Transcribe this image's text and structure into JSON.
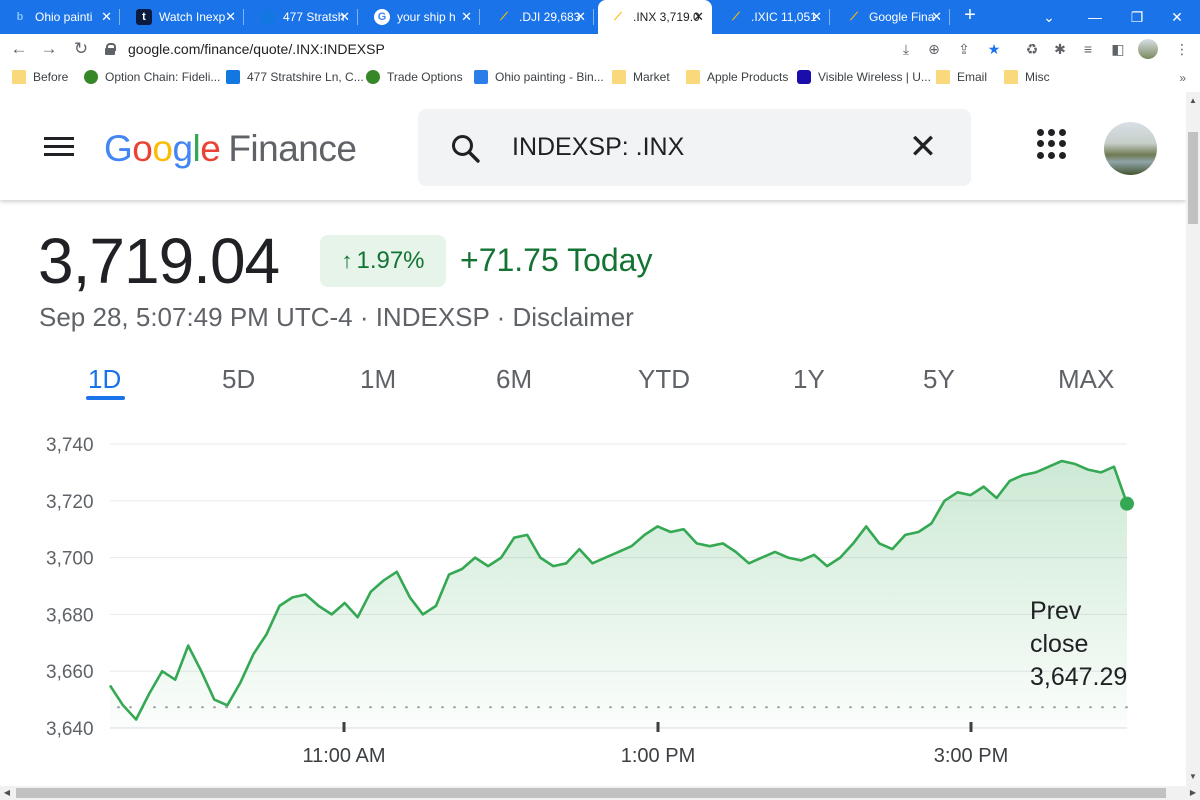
{
  "browser": {
    "tabs": [
      {
        "title": "Ohio painti",
        "icon": "bing-icon",
        "active": false
      },
      {
        "title": "Watch Inexp",
        "icon": "tubi-icon",
        "active": false
      },
      {
        "title": "477 Stratsh",
        "icon": "zillow-icon",
        "active": false
      },
      {
        "title": "your ship h",
        "icon": "google-icon",
        "active": false
      },
      {
        "title": ".DJI 29,683",
        "icon": "google-finance-icon",
        "active": false
      },
      {
        "title": ".INX 3,719.0",
        "icon": "google-finance-icon",
        "active": true
      },
      {
        "title": ".IXIC 11,051",
        "icon": "google-finance-icon",
        "active": false
      },
      {
        "title": "Google Fina",
        "icon": "google-finance-icon",
        "active": false
      }
    ],
    "url": "google.com/finance/quote/.INX:INDEXSP",
    "bookmarks": [
      {
        "label": "Before",
        "icon": "folder-icon"
      },
      {
        "label": "Option Chain: Fideli...",
        "icon": "fidelity-icon"
      },
      {
        "label": "477 Stratshire Ln, C...",
        "icon": "zillow-icon"
      },
      {
        "label": "Trade Options",
        "icon": "fidelity-icon"
      },
      {
        "label": "Ohio painting - Bin...",
        "icon": "bing-icon"
      },
      {
        "label": "Market",
        "icon": "folder-icon"
      },
      {
        "label": "Apple Products",
        "icon": "folder-icon"
      },
      {
        "label": "Visible Wireless | U...",
        "icon": "visible-icon"
      },
      {
        "label": "Email",
        "icon": "folder-icon"
      },
      {
        "label": "Misc",
        "icon": "folder-icon"
      }
    ],
    "bookmarks_more": "»"
  },
  "finance": {
    "logo_google": "Google",
    "logo_finance": "Finance",
    "search_value": "INDEXSP: .INX",
    "price": "3,719.04",
    "change_percent": "1.97%",
    "change_today": "+71.75 Today",
    "meta": "Sep 28, 5:07:49 PM UTC-4 · INDEXSP · Disclaimer",
    "ranges": [
      "1D",
      "5D",
      "1M",
      "6M",
      "YTD",
      "1Y",
      "5Y",
      "MAX"
    ],
    "active_range": "1D",
    "prev_close_label": [
      "Prev",
      "close"
    ],
    "prev_close_value": "3,647.29"
  },
  "colors": {
    "accent": "#1a73e8",
    "positive": "#137333",
    "line": "#34a853"
  },
  "chart_data": {
    "type": "area",
    "ylim": [
      3640,
      3740
    ],
    "yticks": [
      "3,740",
      "3,720",
      "3,700",
      "3,680",
      "3,660",
      "3,640"
    ],
    "xticks": [
      "11:00 AM",
      "1:00 PM",
      "3:00 PM"
    ],
    "prev_close": 3647.29,
    "x": [
      "9:30",
      "9:35",
      "9:40",
      "9:45",
      "9:50",
      "9:55",
      "10:00",
      "10:05",
      "10:10",
      "10:15",
      "10:20",
      "10:25",
      "10:30",
      "10:35",
      "10:40",
      "10:45",
      "10:50",
      "10:55",
      "11:00",
      "11:05",
      "11:10",
      "11:15",
      "11:20",
      "11:25",
      "11:30",
      "11:35",
      "11:40",
      "11:45",
      "11:50",
      "11:55",
      "12:00",
      "12:05",
      "12:10",
      "12:15",
      "12:20",
      "12:25",
      "12:30",
      "12:35",
      "12:40",
      "12:45",
      "12:50",
      "12:55",
      "13:00",
      "13:05",
      "13:10",
      "13:15",
      "13:20",
      "13:25",
      "13:30",
      "13:35",
      "13:40",
      "13:45",
      "13:50",
      "13:55",
      "14:00",
      "14:05",
      "14:10",
      "14:15",
      "14:20",
      "14:25",
      "14:30",
      "14:35",
      "14:40",
      "14:45",
      "14:50",
      "14:55",
      "15:00",
      "15:05",
      "15:10",
      "15:15",
      "15:20",
      "15:25",
      "15:30",
      "15:35",
      "15:40",
      "15:45",
      "15:50",
      "15:55",
      "16:00"
    ],
    "values": [
      3655,
      3648,
      3643,
      3652,
      3660,
      3657,
      3669,
      3660,
      3650,
      3648,
      3656,
      3666,
      3673,
      3683,
      3686,
      3687,
      3683,
      3680,
      3684,
      3679,
      3688,
      3692,
      3695,
      3686,
      3680,
      3683,
      3694,
      3696,
      3700,
      3697,
      3700,
      3707,
      3708,
      3700,
      3697,
      3698,
      3703,
      3698,
      3700,
      3702,
      3704,
      3708,
      3711,
      3709,
      3710,
      3705,
      3704,
      3705,
      3702,
      3698,
      3700,
      3702,
      3700,
      3699,
      3701,
      3697,
      3700,
      3705,
      3711,
      3705,
      3703,
      3708,
      3709,
      3712,
      3720,
      3723,
      3722,
      3725,
      3721,
      3727,
      3729,
      3730,
      3732,
      3734,
      3733,
      3731,
      3730,
      3732,
      3719
    ],
    "series": [
      {
        "name": "",
        "values": "values"
      }
    ],
    "grid": true,
    "xlabel": "",
    "ylabel": ""
  }
}
